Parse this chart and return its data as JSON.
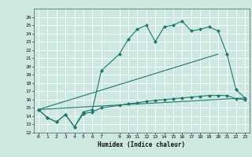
{
  "xlabel": "Humidex (Indice chaleur)",
  "bg_color": "#cce8e0",
  "grid_color": "#ffffff",
  "line_color": "#1a7a6e",
  "xlim": [
    -0.5,
    23.5
  ],
  "ylim": [
    12,
    27
  ],
  "xticks": [
    0,
    1,
    2,
    3,
    4,
    5,
    6,
    7,
    9,
    10,
    11,
    12,
    13,
    14,
    15,
    16,
    17,
    18,
    19,
    20,
    21,
    22,
    23
  ],
  "yticks": [
    12,
    13,
    14,
    15,
    16,
    17,
    18,
    19,
    20,
    21,
    22,
    23,
    24,
    25,
    26
  ],
  "series1_x": [
    0,
    1,
    2,
    3,
    4,
    5,
    6,
    7,
    9,
    10,
    11,
    12,
    13,
    14,
    15,
    16,
    17,
    18,
    19,
    20,
    21,
    22,
    23
  ],
  "series1_y": [
    14.8,
    13.8,
    13.3,
    14.2,
    12.7,
    14.5,
    14.8,
    19.5,
    21.5,
    23.3,
    24.5,
    25.0,
    23.0,
    24.8,
    25.0,
    25.5,
    24.3,
    24.5,
    24.8,
    24.3,
    21.5,
    17.2,
    16.2
  ],
  "series2_x": [
    0,
    1,
    2,
    3,
    4,
    5,
    6,
    7,
    9,
    10,
    11,
    12,
    13,
    14,
    15,
    16,
    17,
    18,
    19,
    20,
    21,
    22,
    23
  ],
  "series2_y": [
    14.8,
    13.8,
    13.3,
    14.2,
    12.7,
    14.3,
    14.5,
    15.0,
    15.3,
    15.5,
    15.6,
    15.8,
    15.9,
    16.0,
    16.1,
    16.2,
    16.3,
    16.4,
    16.5,
    16.5,
    16.5,
    16.1,
    16.0
  ],
  "series3_x": [
    0,
    23
  ],
  "series3_y": [
    14.8,
    16.2
  ],
  "series4_x": [
    0,
    20
  ],
  "series4_y": [
    14.8,
    21.5
  ],
  "markersize": 2.5
}
